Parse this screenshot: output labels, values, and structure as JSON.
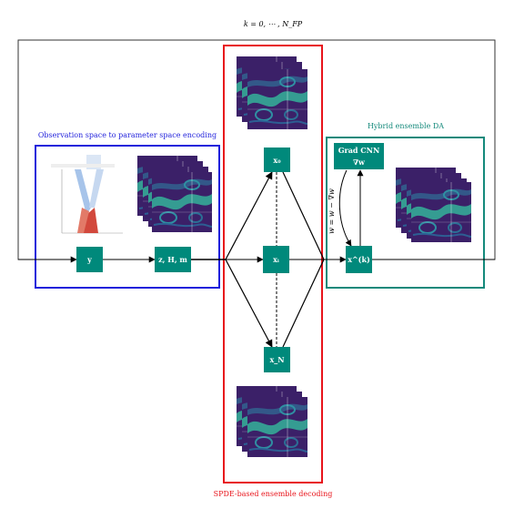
{
  "colors": {
    "node_fill": "#00897b",
    "blue_box": "#1f1fdb",
    "red_box": "#e8141b",
    "teal_box": "#14897b",
    "field_dark": "#3b1f66",
    "field_mid": "#2f6f8e",
    "field_light": "#35b39a",
    "outer_frame": "#333333"
  },
  "loop_label": "k = 0, ⋯ , N_FP",
  "encoding_block": {
    "caption": "Observation space to parameter space encoding",
    "node_y": "y",
    "node_z": "z, H, m"
  },
  "ensemble_block": {
    "caption": "SPDE-based ensemble decoding",
    "node_top": "x₀",
    "node_mid": "xᵢ",
    "node_bottom": "x_N"
  },
  "hybrid_block": {
    "caption": "Hybrid ensemble DA",
    "grad_cnn_line1": "Grad CNN",
    "grad_cnn_line2": "∇w",
    "update_rule": "w = w − ∇w",
    "node_xk": "x^(k)"
  }
}
